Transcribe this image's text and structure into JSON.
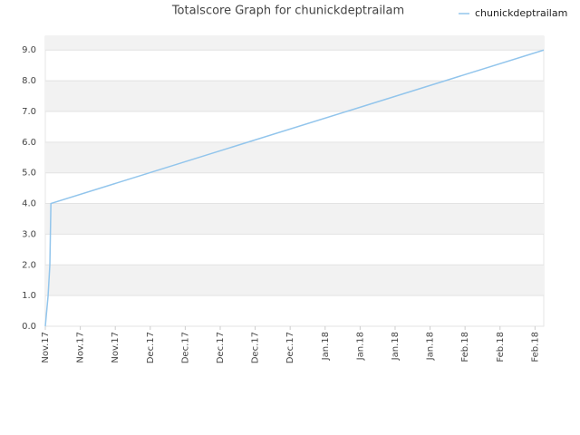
{
  "chart_data": {
    "type": "line",
    "title": "Totalscore Graph for chunickdeptrailam",
    "series": [
      {
        "name": "chunickdeptrailam",
        "color": "#92c5ec",
        "x": [
          0,
          0.08,
          0.13,
          0.16,
          14.25
        ],
        "values": [
          0,
          1,
          2,
          4,
          9
        ]
      }
    ],
    "xlim": [
      0,
      14.25
    ],
    "xticks": [
      {
        "value": 0,
        "label": "Nov.17"
      },
      {
        "value": 1,
        "label": "Nov.17"
      },
      {
        "value": 2,
        "label": "Nov.17"
      },
      {
        "value": 3,
        "label": "Dec.17"
      },
      {
        "value": 4,
        "label": "Dec.17"
      },
      {
        "value": 5,
        "label": "Dec.17"
      },
      {
        "value": 6,
        "label": "Dec.17"
      },
      {
        "value": 7,
        "label": "Dec.17"
      },
      {
        "value": 8,
        "label": "Jan.18"
      },
      {
        "value": 9,
        "label": "Jan.18"
      },
      {
        "value": 10,
        "label": "Jan.18"
      },
      {
        "value": 11,
        "label": "Jan.18"
      },
      {
        "value": 12,
        "label": "Feb.18"
      },
      {
        "value": 13,
        "label": "Feb.18"
      },
      {
        "value": 14,
        "label": "Feb.18"
      }
    ],
    "ylim": [
      0,
      9.45
    ],
    "yticks": [
      {
        "value": 0,
        "label": "0.0"
      },
      {
        "value": 1,
        "label": "1.0"
      },
      {
        "value": 2,
        "label": "2.0"
      },
      {
        "value": 3,
        "label": "3.0"
      },
      {
        "value": 4,
        "label": "4.0"
      },
      {
        "value": 5,
        "label": "5.0"
      },
      {
        "value": 6,
        "label": "6.0"
      },
      {
        "value": 7,
        "label": "7.0"
      },
      {
        "value": 8,
        "label": "8.0"
      },
      {
        "value": 9,
        "label": "9.0"
      }
    ],
    "grid": true,
    "legend": "top-right"
  }
}
